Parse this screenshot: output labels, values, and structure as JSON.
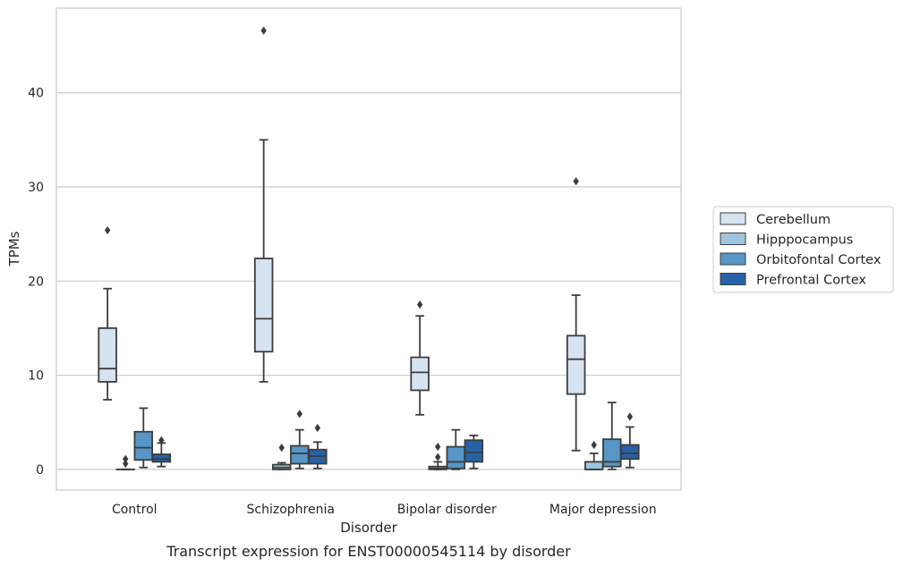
{
  "caption": "Transcript expression for ENST00000545114 by disorder",
  "chart_data": {
    "type": "box",
    "title": "",
    "xlabel": "Disorder",
    "ylabel": "TPMs",
    "ylim": [
      -2.2,
      49
    ],
    "yticks": [
      0,
      10,
      20,
      30,
      40
    ],
    "grid": "horizontal",
    "legend_position": "right, outside plot",
    "categories": [
      "Control",
      "Schizophrenia",
      "Bipolar disorder",
      "Major depression"
    ],
    "series": [
      {
        "name": "Cerebellum",
        "color": "#d6e4f1",
        "boxes": [
          {
            "whislo": 7.4,
            "q1": 9.3,
            "med": 10.7,
            "q3": 15.0,
            "whishi": 19.2,
            "fliers": [
              25.4
            ]
          },
          {
            "whislo": 9.3,
            "q1": 12.5,
            "med": 16.0,
            "q3": 22.4,
            "whishi": 35.0,
            "fliers": [
              46.6
            ]
          },
          {
            "whislo": 5.8,
            "q1": 8.4,
            "med": 10.3,
            "q3": 11.9,
            "whishi": 16.3,
            "fliers": [
              17.5
            ]
          },
          {
            "whislo": 2.0,
            "q1": 8.0,
            "med": 11.7,
            "q3": 14.2,
            "whishi": 18.5,
            "fliers": [
              30.6
            ]
          }
        ]
      },
      {
        "name": "Hipppocampus",
        "color": "#9fc6de",
        "boxes": [
          {
            "whislo": 0.0,
            "q1": 0.0,
            "med": 0.0,
            "q3": 0.0,
            "whishi": 0.0,
            "fliers": [
              0.6,
              1.1
            ]
          },
          {
            "whislo": 0.0,
            "q1": 0.0,
            "med": 0.2,
            "q3": 0.5,
            "whishi": 0.7,
            "fliers": [
              2.3
            ]
          },
          {
            "whislo": 0.0,
            "q1": 0.0,
            "med": 0.1,
            "q3": 0.3,
            "whishi": 0.8,
            "fliers": [
              1.3,
              2.4
            ]
          },
          {
            "whislo": 0.0,
            "q1": 0.0,
            "med": 0.0,
            "q3": 0.8,
            "whishi": 1.7,
            "fliers": [
              2.6
            ]
          }
        ]
      },
      {
        "name": "Orbitofontal Cortex",
        "color": "#5796c6",
        "boxes": [
          {
            "whislo": 0.2,
            "q1": 1.0,
            "med": 2.3,
            "q3": 4.0,
            "whishi": 6.5,
            "fliers": []
          },
          {
            "whislo": 0.1,
            "q1": 0.6,
            "med": 1.7,
            "q3": 2.5,
            "whishi": 4.2,
            "fliers": [
              5.9
            ]
          },
          {
            "whislo": 0.0,
            "q1": 0.1,
            "med": 0.8,
            "q3": 2.4,
            "whishi": 4.2,
            "fliers": []
          },
          {
            "whislo": 0.0,
            "q1": 0.3,
            "med": 0.8,
            "q3": 3.2,
            "whishi": 7.1,
            "fliers": []
          }
        ]
      },
      {
        "name": "Prefrontal Cortex",
        "color": "#2563a8",
        "boxes": [
          {
            "whislo": 0.3,
            "q1": 0.8,
            "med": 1.1,
            "q3": 1.6,
            "whishi": 2.8,
            "fliers": [
              3.1
            ]
          },
          {
            "whislo": 0.1,
            "q1": 0.6,
            "med": 1.4,
            "q3": 2.1,
            "whishi": 2.9,
            "fliers": [
              4.4
            ]
          },
          {
            "whislo": 0.1,
            "q1": 0.8,
            "med": 1.8,
            "q3": 3.1,
            "whishi": 3.6,
            "fliers": []
          },
          {
            "whislo": 0.2,
            "q1": 1.1,
            "med": 1.7,
            "q3": 2.6,
            "whishi": 4.5,
            "fliers": [
              5.6
            ]
          }
        ]
      }
    ]
  }
}
